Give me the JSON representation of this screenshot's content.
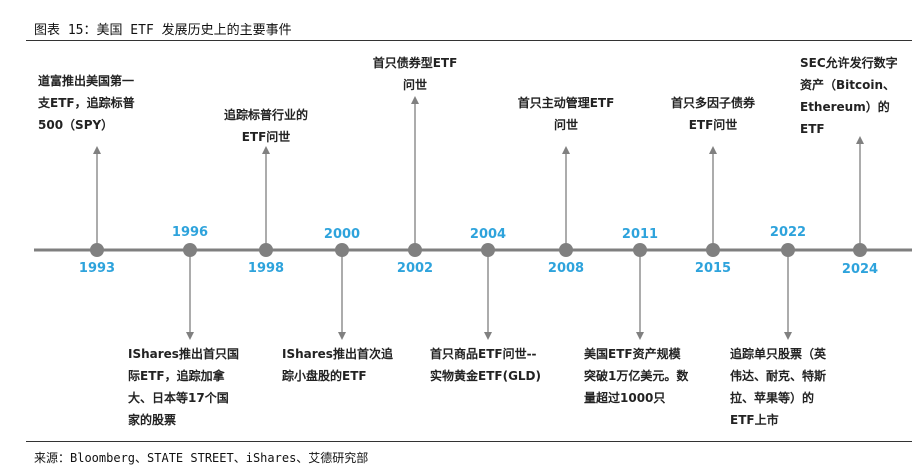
{
  "title": "图表 15：美国 ETF 发展历史上的主要事件",
  "source": "来源：Bloomberg、STATE STREET、iShares、艾德研究部",
  "colors": {
    "axis": "#7f7f7f",
    "year": "#2ea3dc",
    "node": "#808080",
    "text": "#222222"
  },
  "events": [
    {
      "year": "1993",
      "text": "道富推出美国第一\n支ETF，追踪标普\n500（SPY）"
    },
    {
      "year": "1996",
      "text": "IShares推出首只国\n际ETF，追踪加拿\n大、日本等17个国\n家的股票"
    },
    {
      "year": "1998",
      "text": "追踪标普行业的\nETF问世"
    },
    {
      "year": "2000",
      "text": "IShares推出首次追\n踪小盘股的ETF"
    },
    {
      "year": "2002",
      "text": "首只债券型ETF\n问世"
    },
    {
      "year": "2004",
      "text": "首只商品ETF问世--\n实物黄金ETF(GLD)"
    },
    {
      "year": "2008",
      "text": "首只主动管理ETF\n问世"
    },
    {
      "year": "2011",
      "text": "美国ETF资产规模\n突破1万亿美元。数\n量超过1000只"
    },
    {
      "year": "2015",
      "text": "首只多因子债券\nETF问世"
    },
    {
      "year": "2022",
      "text": "追踪单只股票（英\n伟达、耐克、特斯\n拉、苹果等）的\nETF上市"
    },
    {
      "year": "2024",
      "text": "SEC允许发行数字\n资产（Bitcoin、\nEthereum）的ETF"
    }
  ]
}
